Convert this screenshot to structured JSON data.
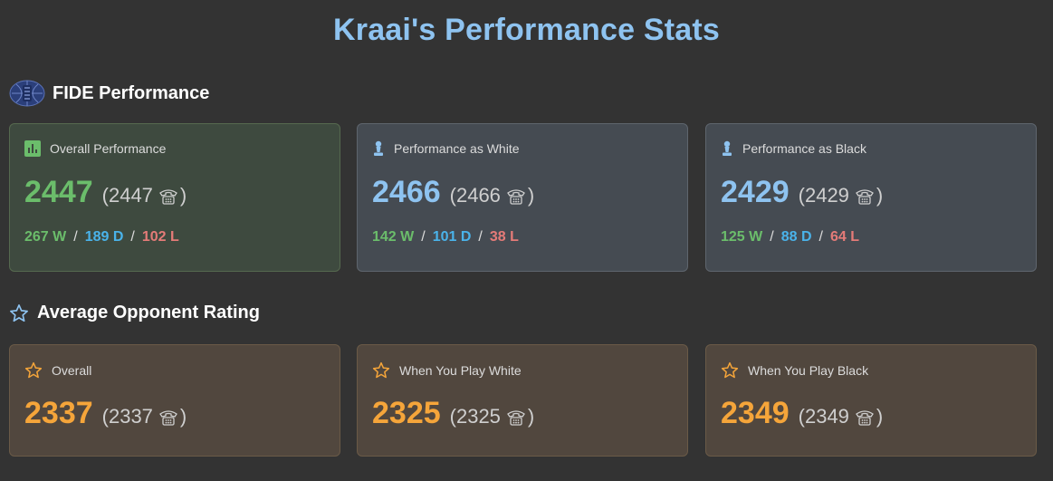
{
  "title": "Kraai's Performance Stats",
  "fide_section": {
    "heading": "FIDE Performance",
    "icon": "fide-logo-icon",
    "cards": [
      {
        "label": "Overall Performance",
        "icon": "bar-chart-icon",
        "value": "2447",
        "paren_open": "(2447",
        "paren_close": ")",
        "wins": "267 W",
        "draws": "189 D",
        "losses": "102 L"
      },
      {
        "label": "Performance as White",
        "icon": "chess-pawn-icon",
        "value": "2466",
        "paren_open": "(2466",
        "paren_close": ")",
        "wins": "142 W",
        "draws": "101 D",
        "losses": "38 L"
      },
      {
        "label": "Performance as Black",
        "icon": "chess-pawn-icon",
        "value": "2429",
        "paren_open": "(2429",
        "paren_close": ")",
        "wins": "125 W",
        "draws": "88 D",
        "losses": "64 L"
      }
    ],
    "separator": "/"
  },
  "opponent_section": {
    "heading": "Average Opponent Rating",
    "icon": "star-outline-icon",
    "cards": [
      {
        "label": "Overall",
        "icon": "star-outline-icon",
        "value": "2337",
        "paren_open": "(2337",
        "paren_close": ")"
      },
      {
        "label": "When You Play White",
        "icon": "star-outline-icon",
        "value": "2325",
        "paren_open": "(2325",
        "paren_close": ")"
      },
      {
        "label": "When You Play Black",
        "icon": "star-outline-icon",
        "value": "2349",
        "paren_open": "(2349",
        "paren_close": ")"
      }
    ]
  },
  "colors": {
    "background": "#333333",
    "title": "#8ec3f0",
    "win": "#6bbd6b",
    "draw": "#4ab3ea",
    "loss": "#e57b78",
    "opponent_value": "#f5a53a"
  }
}
